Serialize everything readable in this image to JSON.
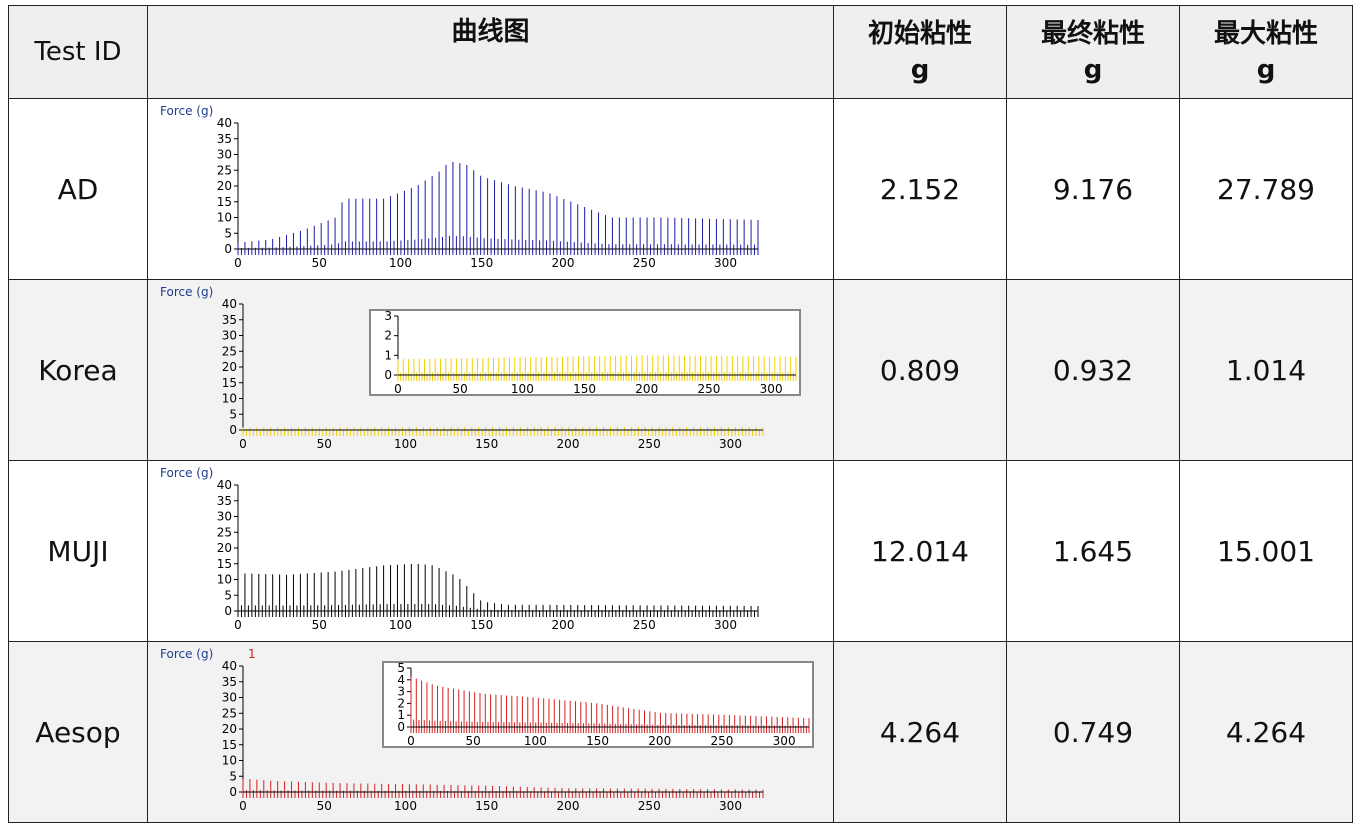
{
  "header": {
    "col_id": "Test ID",
    "col_chart": "曲线图",
    "col_initial": "初始粘性\ng",
    "col_final": "最终粘性\ng",
    "col_max": "最大粘性\ng"
  },
  "rows": [
    {
      "id": "AD",
      "initial": "2.152",
      "final": "9.176",
      "max": "27.789"
    },
    {
      "id": "Korea",
      "initial": "0.809",
      "final": "0.932",
      "max": "1.014"
    },
    {
      "id": "MUJI",
      "initial": "12.014",
      "final": "1.645",
      "max": "15.001"
    },
    {
      "id": "Aesop",
      "initial": "4.264",
      "final": "0.749",
      "max": "4.264"
    }
  ],
  "chart_data": [
    {
      "type": "line",
      "ylabel": "Force (g)",
      "color": "#1a1aa8",
      "ylim": [
        0,
        40
      ],
      "xlim": [
        0,
        320
      ],
      "yticks": [
        0,
        5,
        10,
        15,
        20,
        25,
        30,
        35,
        40
      ],
      "xticks": [
        0,
        50,
        100,
        150,
        200,
        250,
        300
      ],
      "series": [
        {
          "points": [
            [
              0,
              2
            ],
            [
              20,
              3
            ],
            [
              40,
              6
            ],
            [
              60,
              10
            ],
            [
              65,
              16
            ],
            [
              90,
              16
            ],
            [
              110,
              20
            ],
            [
              125,
              25
            ],
            [
              130,
              27.8
            ],
            [
              140,
              27
            ],
            [
              150,
              23
            ],
            [
              170,
              20
            ],
            [
              190,
              18
            ],
            [
              210,
              14
            ],
            [
              230,
              10
            ],
            [
              260,
              10
            ],
            [
              300,
              9.5
            ],
            [
              320,
              9.2
            ]
          ]
        }
      ],
      "inset": null
    },
    {
      "type": "line",
      "ylabel": "Force (g)",
      "color": "#f0d000",
      "ylim": [
        0,
        40
      ],
      "xlim": [
        0,
        320
      ],
      "yticks": [
        0,
        5,
        10,
        15,
        20,
        25,
        30,
        35,
        40
      ],
      "xticks": [
        0,
        50,
        100,
        150,
        200,
        250,
        300
      ],
      "series": [
        {
          "points": [
            [
              0,
              0.8
            ],
            [
              100,
              0.9
            ],
            [
              200,
              1.0
            ],
            [
              320,
              0.93
            ]
          ]
        }
      ],
      "inset": {
        "ylim": [
          0,
          3
        ],
        "xlim": [
          0,
          320
        ],
        "yticks": [
          0,
          1,
          2,
          3
        ],
        "xticks": [
          0,
          50,
          100,
          150,
          200,
          250,
          300
        ],
        "points": [
          [
            0,
            0.8
          ],
          [
            100,
            0.9
          ],
          [
            200,
            1.0
          ],
          [
            320,
            0.93
          ]
        ]
      }
    },
    {
      "type": "line",
      "ylabel": "Force (g)",
      "color": "#000000",
      "ylim": [
        0,
        40
      ],
      "xlim": [
        0,
        320
      ],
      "yticks": [
        0,
        5,
        10,
        15,
        20,
        25,
        30,
        35,
        40
      ],
      "xticks": [
        0,
        50,
        100,
        150,
        200,
        250,
        300
      ],
      "series": [
        {
          "points": [
            [
              0,
              12
            ],
            [
              30,
              11.5
            ],
            [
              60,
              12.5
            ],
            [
              90,
              14.5
            ],
            [
              110,
              15
            ],
            [
              120,
              14.5
            ],
            [
              135,
              11
            ],
            [
              150,
              3
            ],
            [
              165,
              2
            ],
            [
              320,
              1.6
            ]
          ]
        }
      ],
      "inset": null
    },
    {
      "type": "line",
      "ylabel": "Force (g)",
      "annotation": "1",
      "color": "#d42020",
      "ylim": [
        0,
        40
      ],
      "xlim": [
        0,
        320
      ],
      "yticks": [
        0,
        5,
        10,
        15,
        20,
        25,
        30,
        35,
        40
      ],
      "xticks": [
        0,
        50,
        100,
        150,
        200,
        250,
        300
      ],
      "series": [
        {
          "points": [
            [
              0,
              4.26
            ],
            [
              20,
              3.5
            ],
            [
              60,
              2.8
            ],
            [
              100,
              2.5
            ],
            [
              150,
              2.0
            ],
            [
              200,
              1.2
            ],
            [
              260,
              1.0
            ],
            [
              320,
              0.75
            ]
          ]
        }
      ],
      "inset": {
        "ylim": [
          0,
          5
        ],
        "xlim": [
          0,
          320
        ],
        "yticks": [
          0,
          1,
          2,
          3,
          4,
          5
        ],
        "xticks": [
          0,
          50,
          100,
          150,
          200,
          250,
          300
        ],
        "points": [
          [
            0,
            4.26
          ],
          [
            20,
            3.5
          ],
          [
            60,
            2.8
          ],
          [
            100,
            2.5
          ],
          [
            150,
            2.0
          ],
          [
            200,
            1.2
          ],
          [
            260,
            1.0
          ],
          [
            320,
            0.75
          ]
        ]
      }
    }
  ]
}
